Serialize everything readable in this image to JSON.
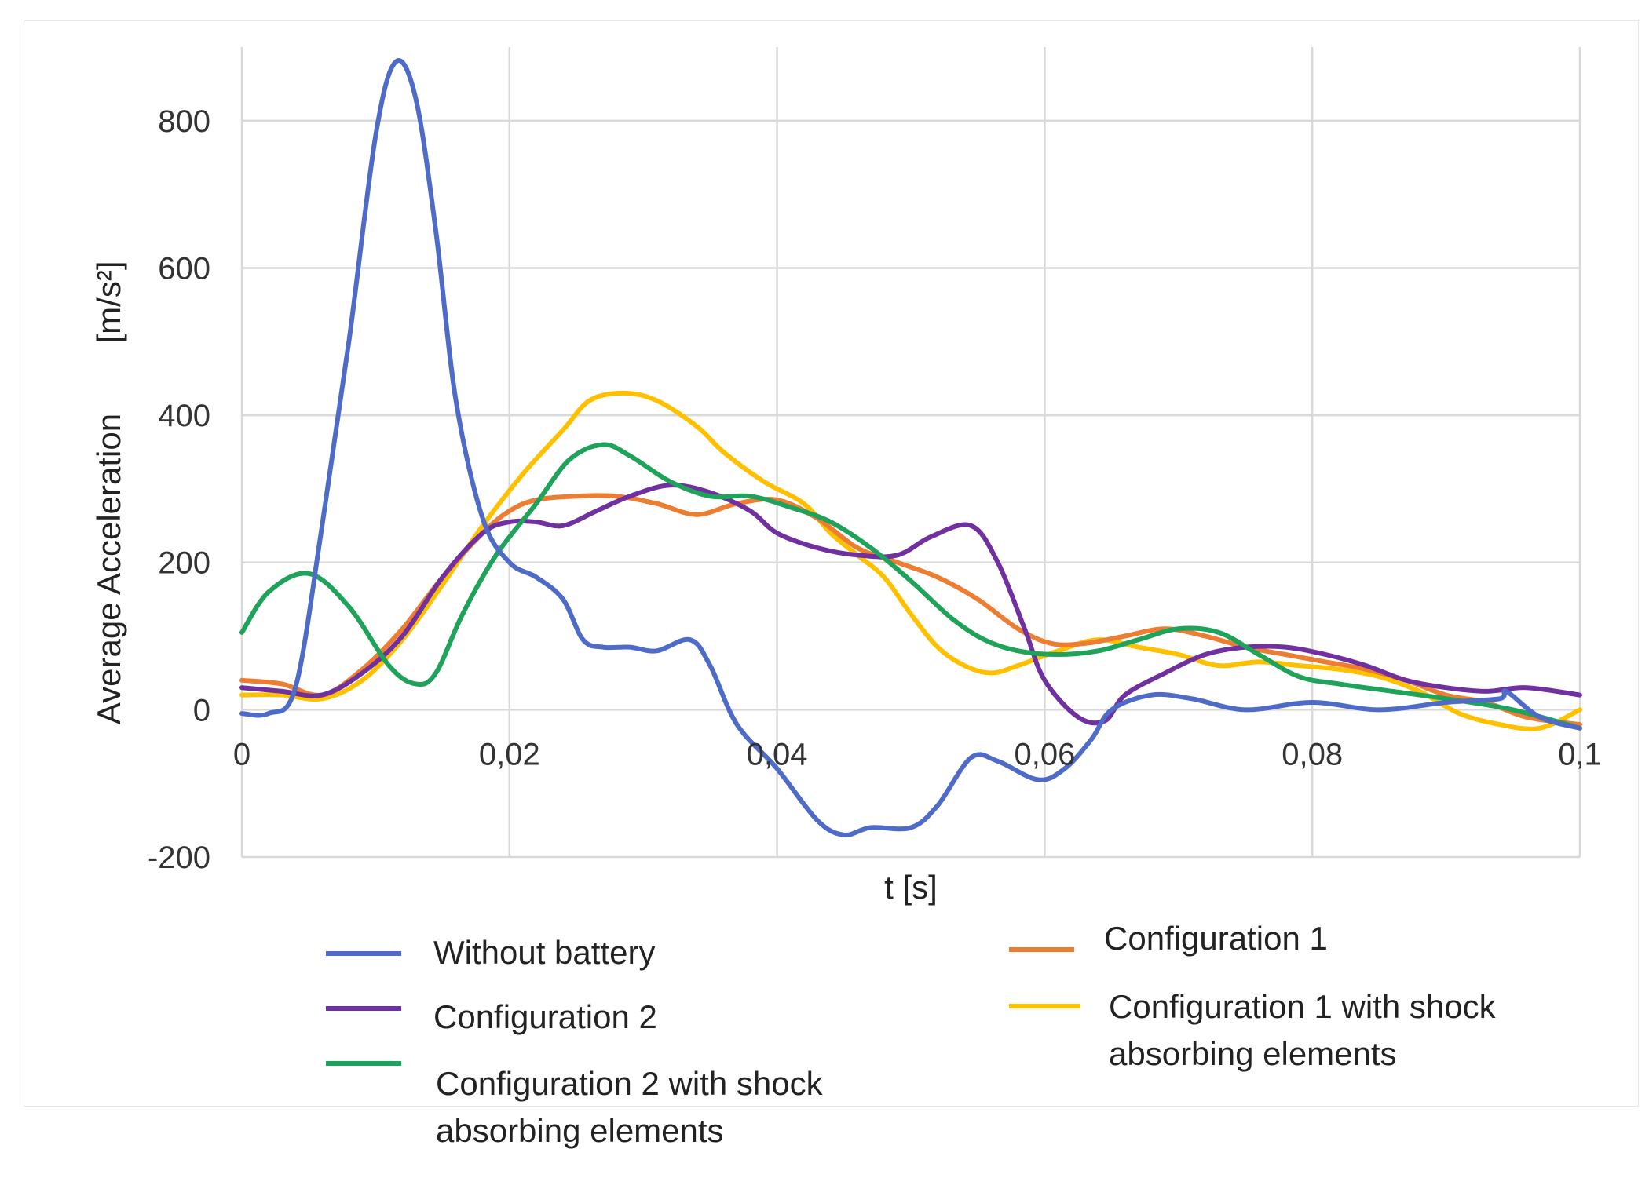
{
  "chart_data": {
    "type": "line",
    "title": "",
    "xlabel": "t [s]",
    "ylabel": "Average Acceleration",
    "ylabel_unit": "[m/s²]",
    "xlim": [
      0,
      0.1
    ],
    "ylim": [
      -200,
      900
    ],
    "x_ticks": [
      {
        "v": 0,
        "label": "0"
      },
      {
        "v": 0.02,
        "label": "0,02"
      },
      {
        "v": 0.04,
        "label": "0,04"
      },
      {
        "v": 0.06,
        "label": "0,06"
      },
      {
        "v": 0.08,
        "label": "0,08"
      },
      {
        "v": 0.1,
        "label": "0,1"
      }
    ],
    "y_ticks": [
      {
        "v": -200,
        "label": "-200"
      },
      {
        "v": 0,
        "label": "0"
      },
      {
        "v": 200,
        "label": "200"
      },
      {
        "v": 400,
        "label": "400"
      },
      {
        "v": 600,
        "label": "600"
      },
      {
        "v": 800,
        "label": "800"
      }
    ],
    "grid": true,
    "legend_position": "bottom",
    "series": [
      {
        "name": "Without battery",
        "color": "#4F6BC8",
        "points": [
          [
            0,
            -5
          ],
          [
            0.002,
            -5
          ],
          [
            0.004,
            30
          ],
          [
            0.006,
            250
          ],
          [
            0.008,
            500
          ],
          [
            0.01,
            780
          ],
          [
            0.0115,
            880
          ],
          [
            0.013,
            830
          ],
          [
            0.0145,
            650
          ],
          [
            0.016,
            420
          ],
          [
            0.018,
            260
          ],
          [
            0.02,
            200
          ],
          [
            0.022,
            180
          ],
          [
            0.024,
            150
          ],
          [
            0.0255,
            95
          ],
          [
            0.027,
            85
          ],
          [
            0.029,
            85
          ],
          [
            0.031,
            80
          ],
          [
            0.0335,
            95
          ],
          [
            0.035,
            60
          ],
          [
            0.037,
            -20
          ],
          [
            0.04,
            -80
          ],
          [
            0.043,
            -150
          ],
          [
            0.045,
            -170
          ],
          [
            0.047,
            -160
          ],
          [
            0.05,
            -160
          ],
          [
            0.052,
            -130
          ],
          [
            0.0545,
            -65
          ],
          [
            0.0565,
            -70
          ],
          [
            0.0595,
            -95
          ],
          [
            0.0615,
            -80
          ],
          [
            0.0635,
            -40
          ],
          [
            0.065,
            0
          ],
          [
            0.068,
            20
          ],
          [
            0.071,
            15
          ],
          [
            0.075,
            0
          ],
          [
            0.08,
            10
          ],
          [
            0.085,
            0
          ],
          [
            0.09,
            10
          ],
          [
            0.094,
            15
          ],
          [
            0.0945,
            25
          ],
          [
            0.097,
            -10
          ],
          [
            0.1,
            -25
          ]
        ]
      },
      {
        "name": "Configuration 2",
        "color": "#7030A0",
        "points": [
          [
            0,
            30
          ],
          [
            0.003,
            25
          ],
          [
            0.006,
            20
          ],
          [
            0.009,
            50
          ],
          [
            0.012,
            100
          ],
          [
            0.015,
            180
          ],
          [
            0.018,
            240
          ],
          [
            0.02,
            255
          ],
          [
            0.022,
            255
          ],
          [
            0.024,
            250
          ],
          [
            0.0265,
            270
          ],
          [
            0.029,
            290
          ],
          [
            0.032,
            305
          ],
          [
            0.035,
            295
          ],
          [
            0.038,
            270
          ],
          [
            0.04,
            240
          ],
          [
            0.043,
            220
          ],
          [
            0.046,
            210
          ],
          [
            0.049,
            210
          ],
          [
            0.0515,
            235
          ],
          [
            0.0545,
            250
          ],
          [
            0.0565,
            200
          ],
          [
            0.0585,
            110
          ],
          [
            0.06,
            40
          ],
          [
            0.0625,
            -10
          ],
          [
            0.0645,
            -15
          ],
          [
            0.066,
            20
          ],
          [
            0.069,
            50
          ],
          [
            0.072,
            75
          ],
          [
            0.075,
            85
          ],
          [
            0.078,
            85
          ],
          [
            0.081,
            75
          ],
          [
            0.084,
            60
          ],
          [
            0.087,
            40
          ],
          [
            0.09,
            30
          ],
          [
            0.093,
            25
          ],
          [
            0.096,
            30
          ],
          [
            0.1,
            20
          ]
        ]
      },
      {
        "name": "Configuration 2 with shock absorbing elements",
        "color": "#1FA25A",
        "points": [
          [
            0,
            105
          ],
          [
            0.002,
            160
          ],
          [
            0.005,
            185
          ],
          [
            0.008,
            140
          ],
          [
            0.011,
            60
          ],
          [
            0.013,
            35
          ],
          [
            0.0145,
            50
          ],
          [
            0.0165,
            130
          ],
          [
            0.019,
            210
          ],
          [
            0.022,
            280
          ],
          [
            0.0245,
            340
          ],
          [
            0.027,
            360
          ],
          [
            0.029,
            345
          ],
          [
            0.032,
            310
          ],
          [
            0.035,
            290
          ],
          [
            0.038,
            290
          ],
          [
            0.041,
            275
          ],
          [
            0.044,
            255
          ],
          [
            0.047,
            220
          ],
          [
            0.05,
            175
          ],
          [
            0.053,
            125
          ],
          [
            0.0555,
            95
          ],
          [
            0.058,
            80
          ],
          [
            0.061,
            75
          ],
          [
            0.064,
            80
          ],
          [
            0.067,
            95
          ],
          [
            0.07,
            110
          ],
          [
            0.073,
            105
          ],
          [
            0.076,
            75
          ],
          [
            0.079,
            45
          ],
          [
            0.082,
            35
          ],
          [
            0.086,
            25
          ],
          [
            0.09,
            15
          ],
          [
            0.095,
            0
          ],
          [
            0.1,
            -25
          ]
        ]
      },
      {
        "name": "Configuration 1",
        "color": "#ED7D31",
        "points": [
          [
            0,
            40
          ],
          [
            0.003,
            35
          ],
          [
            0.006,
            20
          ],
          [
            0.009,
            55
          ],
          [
            0.012,
            110
          ],
          [
            0.015,
            180
          ],
          [
            0.018,
            240
          ],
          [
            0.02,
            270
          ],
          [
            0.022,
            285
          ],
          [
            0.025,
            290
          ],
          [
            0.028,
            290
          ],
          [
            0.031,
            280
          ],
          [
            0.034,
            265
          ],
          [
            0.037,
            280
          ],
          [
            0.04,
            285
          ],
          [
            0.043,
            260
          ],
          [
            0.046,
            220
          ],
          [
            0.049,
            200
          ],
          [
            0.052,
            180
          ],
          [
            0.055,
            150
          ],
          [
            0.058,
            110
          ],
          [
            0.0605,
            90
          ],
          [
            0.063,
            90
          ],
          [
            0.066,
            100
          ],
          [
            0.069,
            110
          ],
          [
            0.072,
            100
          ],
          [
            0.075,
            85
          ],
          [
            0.078,
            75
          ],
          [
            0.081,
            65
          ],
          [
            0.084,
            55
          ],
          [
            0.087,
            40
          ],
          [
            0.09,
            20
          ],
          [
            0.093,
            10
          ],
          [
            0.096,
            -10
          ],
          [
            0.1,
            -20
          ]
        ]
      },
      {
        "name": "Configuration 1 with shock absorbing elements",
        "color": "#FFC000",
        "points": [
          [
            0,
            20
          ],
          [
            0.003,
            20
          ],
          [
            0.006,
            15
          ],
          [
            0.009,
            40
          ],
          [
            0.012,
            95
          ],
          [
            0.015,
            170
          ],
          [
            0.018,
            250
          ],
          [
            0.021,
            320
          ],
          [
            0.024,
            380
          ],
          [
            0.026,
            420
          ],
          [
            0.0285,
            430
          ],
          [
            0.031,
            420
          ],
          [
            0.034,
            385
          ],
          [
            0.036,
            350
          ],
          [
            0.039,
            310
          ],
          [
            0.042,
            280
          ],
          [
            0.044,
            240
          ],
          [
            0.046,
            210
          ],
          [
            0.048,
            180
          ],
          [
            0.05,
            130
          ],
          [
            0.052,
            85
          ],
          [
            0.054,
            60
          ],
          [
            0.056,
            50
          ],
          [
            0.058,
            60
          ],
          [
            0.061,
            80
          ],
          [
            0.064,
            95
          ],
          [
            0.067,
            85
          ],
          [
            0.07,
            75
          ],
          [
            0.073,
            60
          ],
          [
            0.076,
            65
          ],
          [
            0.079,
            60
          ],
          [
            0.082,
            55
          ],
          [
            0.085,
            45
          ],
          [
            0.088,
            25
          ],
          [
            0.091,
            -5
          ],
          [
            0.094,
            -20
          ],
          [
            0.097,
            -25
          ],
          [
            0.1,
            0
          ]
        ]
      }
    ]
  }
}
